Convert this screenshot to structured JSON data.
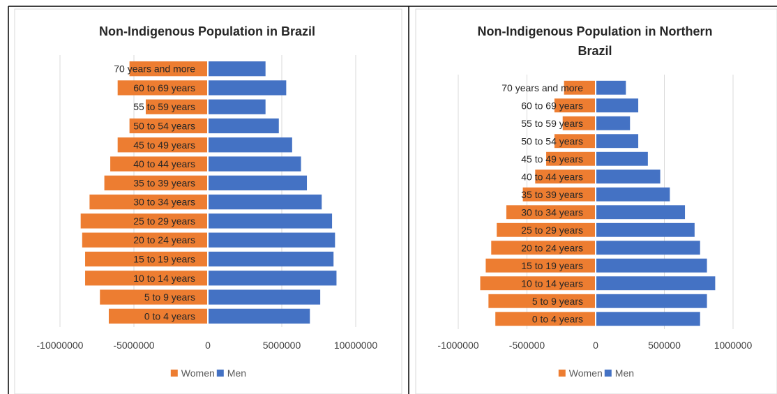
{
  "chart_data": [
    {
      "type": "bar",
      "orientation": "horizontal",
      "stacking": "diverging",
      "title": "Non-Indigenous Population in Brazil",
      "categories": [
        "70 years and more",
        "60 to 69 years",
        "55 to 59 years",
        "50 to 54 years",
        "45 to 49 years",
        "40 to 44 years",
        "35 to 39 years",
        "30 to 34 years",
        "25 to 29 years",
        "20 to 24 years",
        "15 to 19 years",
        "10 to 14 years",
        "5 to 9 years",
        "0 to 4 years"
      ],
      "series": [
        {
          "name": "Women",
          "color": "#ED7D31",
          "values": [
            -5300000,
            -6100000,
            -4200000,
            -5300000,
            -6100000,
            -6600000,
            -7000000,
            -8000000,
            -8600000,
            -8500000,
            -8300000,
            -8300000,
            -7300000,
            -6700000
          ]
        },
        {
          "name": "Men",
          "color": "#4472C4",
          "values": [
            3900000,
            5300000,
            3900000,
            4800000,
            5700000,
            6300000,
            6700000,
            7700000,
            8400000,
            8600000,
            8500000,
            8700000,
            7600000,
            6900000
          ]
        }
      ],
      "xlim": [
        -10000000,
        10000000
      ],
      "xticks": [
        -10000000,
        -5000000,
        0,
        5000000,
        10000000
      ],
      "xtick_labels": [
        "-10000000",
        "-5000000",
        "0",
        "5000000",
        "10000000"
      ],
      "grid": true,
      "legend": "bottom"
    },
    {
      "type": "bar",
      "orientation": "horizontal",
      "stacking": "diverging",
      "title": "Non-Indigenous Population in Northern Brazil",
      "categories": [
        "70 years and more",
        "60 to 69 years",
        "55 to 59 years",
        "50 to 54 years",
        "45 to 49 years",
        "40 to 44 years",
        "35 to 39 years",
        "30 to 34 years",
        "25 to 29 years",
        "20 to 24 years",
        "15 to 19 years",
        "10 to 14 years",
        "5 to 9 years",
        "0 to 4 years"
      ],
      "series": [
        {
          "name": "Women",
          "color": "#ED7D31",
          "values": [
            -230000,
            -300000,
            -240000,
            -300000,
            -360000,
            -440000,
            -530000,
            -650000,
            -720000,
            -760000,
            -800000,
            -840000,
            -780000,
            -730000
          ]
        },
        {
          "name": "Men",
          "color": "#4472C4",
          "values": [
            220000,
            310000,
            250000,
            310000,
            380000,
            470000,
            540000,
            650000,
            720000,
            760000,
            810000,
            870000,
            810000,
            760000
          ]
        }
      ],
      "xlim": [
        -1000000,
        1000000
      ],
      "xticks": [
        -1000000,
        -500000,
        0,
        500000,
        1000000
      ],
      "xtick_labels": [
        "-1000000",
        "-500000",
        "0",
        "500000",
        "1000000"
      ],
      "grid": true,
      "legend": "bottom"
    }
  ]
}
